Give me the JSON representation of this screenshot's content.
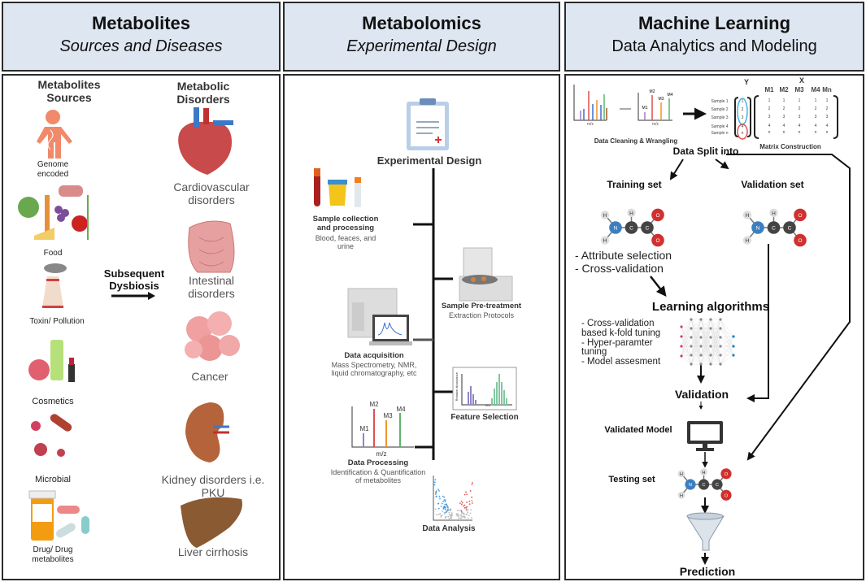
{
  "panels": {
    "left": {
      "title": "Metabolites",
      "subtitle": "Sources and Diseases"
    },
    "middle": {
      "title": "Metabolomics",
      "subtitle": "Experimental Design"
    },
    "right": {
      "title": "Machine Learning",
      "subtitle": "Data Analytics and Modeling"
    }
  },
  "left": {
    "sources_heading_1": "Metabolites",
    "sources_heading_2": "Sources",
    "sources": [
      "Genome",
      "encoded",
      "Food",
      "Toxin/ Pollution",
      "Cosmetics",
      "Microbial",
      "Drug/ Drug",
      "metabolites"
    ],
    "transition_1": "Subsequent",
    "transition_2": "Dysbiosis",
    "disorders_heading_1": "Metabolic",
    "disorders_heading_2": "Disorders",
    "disorders": [
      "Cardiovascular",
      "disorders",
      "Intestinal",
      "disorders",
      "Cancer",
      "Kidney disorders i.e.",
      "PKU",
      "Liver cirrhosis"
    ]
  },
  "middle": {
    "design_label": "Experimental Design",
    "steps": {
      "collection_title_1": "Sample collection",
      "collection_title_2": "and processing",
      "collection_desc_1": "Blood, feaces, and",
      "collection_desc_2": "urine",
      "pretreat_title": "Sample Pre-treatment",
      "pretreat_desc": "Extraction Protocols",
      "acq_title": "Data acquisition",
      "acq_desc_1": "Mass Spectrometry, NMR,",
      "acq_desc_2": "liquid chromatography, etc",
      "feature_title": "Feature Selection",
      "feature_axis_y": "Relative abundance",
      "feature_axis_x": "m/z",
      "proc_peaks": [
        "M1",
        "M2",
        "M3",
        "M4"
      ],
      "proc_axis": "m/z",
      "proc_title": "Data Processing",
      "proc_desc_1": "Identification & Quantification",
      "proc_desc_2": "of metabolites",
      "analysis_title": "Data Analysis"
    }
  },
  "right": {
    "cleaning": {
      "axis": "m/z",
      "peaks": [
        "M1",
        "M2",
        "M3",
        "M4"
      ],
      "label": "Data Cleaning & Wrangling"
    },
    "matrix": {
      "y_label": "Y",
      "x_label": "X",
      "cols": [
        "M1",
        "M2",
        "M3",
        "M4",
        "Mn"
      ],
      "rows": [
        "Sample 1",
        "Sample 2",
        "Sample 3",
        "Sample 4",
        "Sample n"
      ],
      "y_vals": [
        "1",
        "2",
        "3",
        "4",
        "n"
      ],
      "vals": [
        "1",
        "2",
        "3",
        "4",
        "n"
      ],
      "label": "Matrix Construction"
    },
    "split_label": "Data Split into",
    "training_label": "Training set",
    "validation_set_label": "Validation set",
    "training_steps": [
      "- Attribute selection",
      "- Cross-validation"
    ],
    "learning_label": "Learning algorithms",
    "learning_steps": [
      "- Cross-validation",
      "based k-fold tuning",
      "- Hyper-paramter",
      "tuning",
      "- Model assesment"
    ],
    "validation_label": "Validation",
    "validated_model_label": "Validated Model",
    "testing_label": "Testing set",
    "prediction_label": "Prediction",
    "molecule_atoms": [
      "H",
      "N",
      "C",
      "C",
      "O",
      "O",
      "H",
      "H"
    ]
  },
  "colors": {
    "header_bg": "#dde6f1",
    "border": "#2b2b2b",
    "red": "#e05050",
    "blue": "#3b8fd0",
    "green": "#5db56a",
    "orange": "#f0932b",
    "purple": "#9b7fc8"
  }
}
